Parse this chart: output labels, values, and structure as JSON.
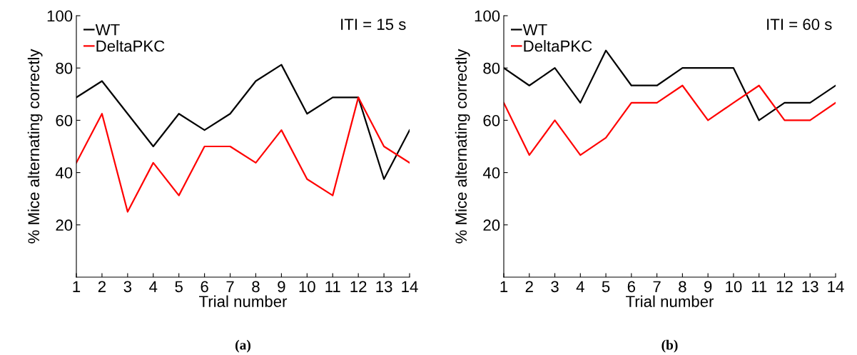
{
  "chart_data": [
    {
      "type": "line",
      "xlabel": "Trial number",
      "ylabel": "% Mice alternating correctly",
      "x": [
        1,
        2,
        3,
        4,
        5,
        6,
        7,
        8,
        9,
        10,
        11,
        12,
        13,
        14
      ],
      "series": [
        {
          "name": "WT",
          "color": "#000000",
          "values": [
            68.75,
            75,
            62.5,
            50,
            62.5,
            56.25,
            62.5,
            75,
            81.25,
            62.5,
            68.75,
            68.75,
            37.5,
            56.25
          ]
        },
        {
          "name": "DeltaPKC",
          "color": "#ff0000",
          "values": [
            43.75,
            62.5,
            25,
            43.75,
            31.25,
            50,
            50,
            43.75,
            56.25,
            37.5,
            31.25,
            68.75,
            50,
            43.75
          ]
        }
      ],
      "xlim": [
        1,
        14
      ],
      "xticks": [
        1,
        2,
        3,
        4,
        5,
        6,
        7,
        8,
        9,
        10,
        11,
        12,
        13,
        14
      ],
      "ylim": [
        0,
        100
      ],
      "yticks": [
        20,
        40,
        60,
        80,
        100
      ],
      "legend": "top left",
      "grid": false,
      "marker": "none",
      "line_style": "solid",
      "annotations": [
        "ITI = 15 s",
        "(a)"
      ]
    },
    {
      "type": "line",
      "xlabel": "Trial number",
      "ylabel": "% Mice alternating correctly",
      "x": [
        1,
        2,
        3,
        4,
        5,
        6,
        7,
        8,
        9,
        10,
        11,
        12,
        13,
        14
      ],
      "series": [
        {
          "name": "WT",
          "color": "#000000",
          "values": [
            80,
            73.3,
            80,
            66.7,
            86.7,
            73.3,
            73.3,
            80,
            80,
            80,
            60,
            66.7,
            66.7,
            73.3
          ]
        },
        {
          "name": "DeltaPKC",
          "color": "#ff0000",
          "values": [
            66.7,
            46.7,
            60,
            46.7,
            53.3,
            66.7,
            66.7,
            73.3,
            60,
            66.7,
            73.3,
            60,
            60,
            66.7
          ]
        }
      ],
      "xlim": [
        1,
        14
      ],
      "xticks": [
        1,
        2,
        3,
        4,
        5,
        6,
        7,
        8,
        9,
        10,
        11,
        12,
        13,
        14
      ],
      "ylim": [
        0,
        100
      ],
      "yticks": [
        20,
        40,
        60,
        80,
        100
      ],
      "legend": "top left",
      "grid": false,
      "marker": "none",
      "line_style": "solid",
      "annotations": [
        "ITI = 60 s",
        "(b)"
      ]
    }
  ]
}
